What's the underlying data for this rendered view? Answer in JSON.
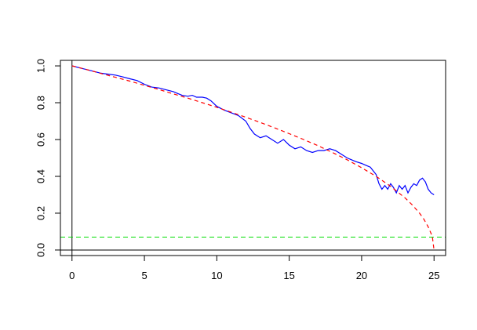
{
  "chart_data": {
    "type": "line",
    "title": "",
    "xlabel": "",
    "ylabel": "",
    "xlim": [
      -0.8,
      25.8
    ],
    "ylim": [
      -0.03,
      1.03
    ],
    "x_ticks": [
      0,
      5,
      10,
      15,
      20,
      25
    ],
    "x_tick_labels": [
      "0",
      "5",
      "10",
      "15",
      "20",
      "25"
    ],
    "y_ticks": [
      0.0,
      0.2,
      0.4,
      0.6,
      0.8,
      1.0
    ],
    "y_tick_labels": [
      "0.0",
      "0.2",
      "0.4",
      "0.6",
      "0.8",
      "1.0"
    ],
    "grid": false,
    "legend": "none",
    "reference_lines": [
      {
        "orientation": "vertical",
        "value": 0,
        "color": "#000000",
        "style": "solid"
      },
      {
        "orientation": "horizontal",
        "value": 0,
        "color": "#000000",
        "style": "solid"
      },
      {
        "orientation": "horizontal",
        "value": 0.07,
        "color": "#00dd00",
        "style": "dashed"
      }
    ],
    "series": [
      {
        "color": "#0000ff",
        "style": "solid",
        "x": [
          0,
          0.5,
          1,
          1.5,
          2,
          2.5,
          3,
          3.5,
          4,
          4.5,
          5,
          5.5,
          6,
          6.5,
          7,
          7.3,
          7.6,
          8,
          8.3,
          8.6,
          9,
          9.3,
          9.6,
          10,
          10.5,
          11,
          11.5,
          12,
          12.3,
          12.6,
          13,
          13.4,
          13.8,
          14.2,
          14.6,
          15,
          15.4,
          15.8,
          16.2,
          16.6,
          17,
          17.4,
          17.8,
          18.2,
          18.6,
          19,
          19.3,
          19.6,
          20,
          20.3,
          20.6,
          21,
          21.2,
          21.4,
          21.6,
          21.8,
          22,
          22.2,
          22.4,
          22.6,
          22.8,
          23,
          23.2,
          23.4,
          23.6,
          23.8,
          24,
          24.2,
          24.4,
          24.6,
          24.8,
          25
        ],
        "y": [
          1.0,
          0.99,
          0.98,
          0.97,
          0.96,
          0.955,
          0.95,
          0.94,
          0.93,
          0.92,
          0.9,
          0.885,
          0.88,
          0.87,
          0.86,
          0.85,
          0.84,
          0.835,
          0.84,
          0.83,
          0.83,
          0.825,
          0.81,
          0.78,
          0.76,
          0.745,
          0.73,
          0.7,
          0.66,
          0.63,
          0.61,
          0.62,
          0.6,
          0.58,
          0.6,
          0.57,
          0.55,
          0.56,
          0.54,
          0.53,
          0.54,
          0.54,
          0.55,
          0.54,
          0.52,
          0.5,
          0.49,
          0.48,
          0.47,
          0.46,
          0.45,
          0.41,
          0.36,
          0.33,
          0.35,
          0.33,
          0.36,
          0.34,
          0.31,
          0.35,
          0.33,
          0.35,
          0.31,
          0.34,
          0.36,
          0.35,
          0.38,
          0.39,
          0.37,
          0.33,
          0.31,
          0.3
        ]
      },
      {
        "color": "#ff0000",
        "style": "dashed",
        "x": [
          0,
          1,
          2,
          3,
          4,
          5,
          6,
          7,
          8,
          9,
          10,
          11,
          12,
          13,
          14,
          15,
          16,
          17,
          18,
          19,
          20,
          21,
          22,
          23,
          23.5,
          24,
          24.3,
          24.6,
          24.8,
          24.9,
          25
        ],
        "y": [
          1.0,
          0.98,
          0.959,
          0.938,
          0.917,
          0.894,
          0.872,
          0.848,
          0.825,
          0.8,
          0.775,
          0.748,
          0.721,
          0.693,
          0.663,
          0.632,
          0.6,
          0.566,
          0.529,
          0.49,
          0.447,
          0.4,
          0.346,
          0.283,
          0.245,
          0.2,
          0.167,
          0.126,
          0.089,
          0.063,
          0.0
        ]
      }
    ]
  }
}
